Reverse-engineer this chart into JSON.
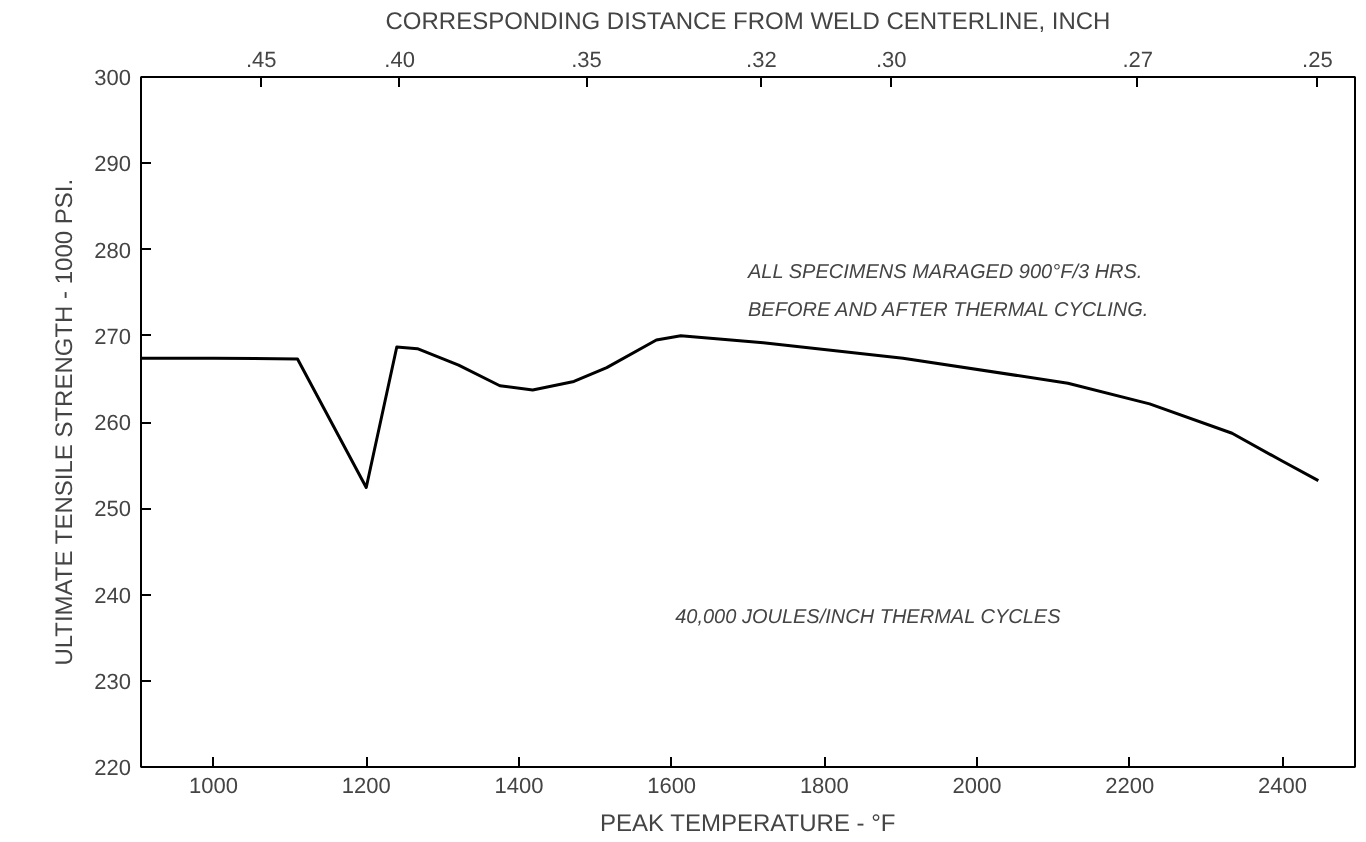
{
  "chart_data": {
    "type": "line",
    "xlabel": "PEAK TEMPERATURE - °F",
    "ylabel": "ULTIMATE TENSILE STRENGTH - 1000 PSI.",
    "x2label": "CORRESPONDING DISTANCE FROM WELD CENTERLINE, INCH",
    "annotations": [
      "ALL SPECIMENS MARAGED 900°F/3 HRS.",
      "BEFORE AND AFTER THERMAL CYCLING.",
      "40,000 JOULES/INCH THERMAL CYCLES",
      ".45",
      ".40",
      ".35",
      ".32",
      ".30",
      ".27",
      ".25"
    ],
    "series": [
      {
        "color": "#000000",
        "x": [
          905,
          1000,
          1110,
          1200,
          1240,
          1267,
          1321,
          1375,
          1418,
          1472,
          1515,
          1580,
          1612,
          1720,
          1903,
          2119,
          2226,
          2334,
          2399,
          2447
        ],
        "values": [
          267.4,
          267.4,
          267.3,
          252.4,
          268.7,
          268.5,
          266.6,
          264.2,
          263.7,
          264.7,
          266.3,
          269.5,
          270,
          269.2,
          267.4,
          264.5,
          262.1,
          258.7,
          255.5,
          253.2
        ]
      }
    ],
    "xlim": [
      905,
      2495
    ],
    "xticks": [
      1000,
      1200,
      1400,
      1600,
      1800,
      2000,
      2200,
      2400
    ],
    "ylim": [
      220,
      300
    ],
    "yticks": [
      220,
      230,
      240,
      250,
      260,
      270,
      280,
      290,
      300
    ],
    "grid": false,
    "marker": "none",
    "line_style": "solid"
  }
}
